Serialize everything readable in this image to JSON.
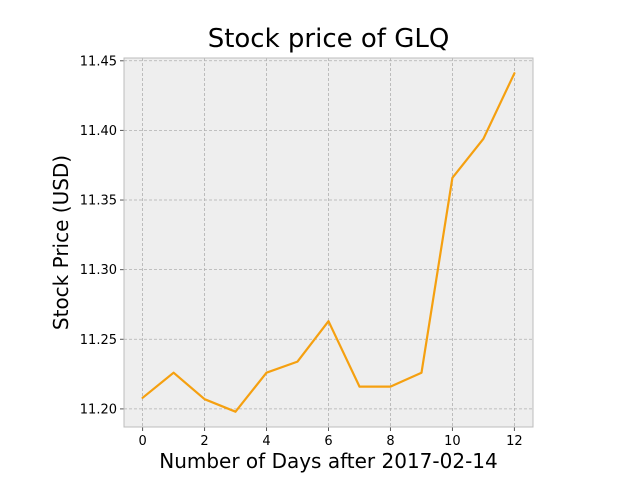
{
  "chart_data": {
    "type": "line",
    "title": "Stock price of GLQ",
    "xlabel": "Number of Days after 2017-02-14",
    "ylabel": "Stock Price (USD)",
    "xlim": [
      -0.6,
      12.6
    ],
    "ylim": [
      11.187,
      11.452
    ],
    "xticks": [
      0,
      2,
      4,
      6,
      8,
      10,
      12
    ],
    "xtick_labels": [
      "0",
      "2",
      "4",
      "6",
      "8",
      "10",
      "12"
    ],
    "yticks": [
      11.2,
      11.25,
      11.3,
      11.35,
      11.4,
      11.45
    ],
    "ytick_labels": [
      "11.20",
      "11.25",
      "11.30",
      "11.35",
      "11.40",
      "11.45"
    ],
    "grid": true,
    "series": [
      {
        "color": "#f5a010",
        "x": [
          0,
          1,
          2,
          3,
          4,
          5,
          6,
          7,
          8,
          9,
          10,
          11,
          12
        ],
        "values": [
          11.208,
          11.226,
          11.207,
          11.198,
          11.226,
          11.234,
          11.263,
          11.216,
          11.216,
          11.226,
          11.366,
          11.394,
          11.441
        ]
      }
    ],
    "background": "#eeeeee"
  }
}
